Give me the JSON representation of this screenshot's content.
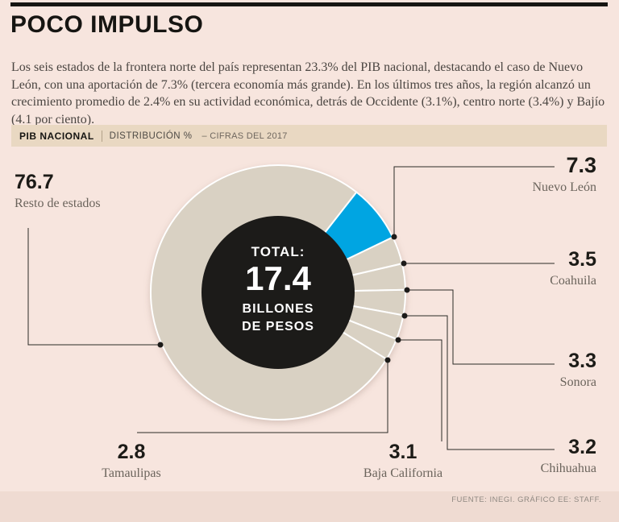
{
  "header": {
    "title": "POCO IMPULSO",
    "intro": "Los seis estados de la frontera norte del país representan 23.3% del PIB nacional, destacando el caso de Nuevo León, con una aportación de 7.3% (tercera economía más grande). En los últimos tres años, la región alcanzó un crecimiento promedio de 2.4% en su actividad económica, detrás de Occidente (3.1%), centro norte (3.4%) y Bajío (4.1 por ciento)."
  },
  "strip": {
    "label": "PIB NACIONAL",
    "sub": "DISTRIBUCIÓN %",
    "note": "– CIFRAS DEL 2017"
  },
  "donut_center": {
    "line1": "TOTAL:",
    "value": "17.4",
    "line2": "BILLONES",
    "line3": "DE PESOS"
  },
  "footer": {
    "source": "FUENTE: INEGI. GRÁFICO EE: STAFF."
  },
  "chart_data": {
    "type": "pie",
    "donut": true,
    "title": "PIB NACIONAL – DISTRIBUCIÓN % – CIFRAS DEL 2017",
    "center_label": "TOTAL: 17.4 BILLONES DE PESOS",
    "units": "% del PIB nacional",
    "start_angle_deg": 38,
    "legend_position": "callout-labels",
    "colors": {
      "highlight": "#00a5e2",
      "base": "#d9d1c3",
      "hole": "#1c1b19",
      "background": "#f7e5de"
    },
    "slices": [
      {
        "label": "Nuevo León",
        "value": 7.3,
        "color": "#00a5e2"
      },
      {
        "label": "Coahuila",
        "value": 3.5,
        "color": "#d9d1c3"
      },
      {
        "label": "Sonora",
        "value": 3.3,
        "color": "#d9d1c3"
      },
      {
        "label": "Chihuahua",
        "value": 3.2,
        "color": "#d9d1c3"
      },
      {
        "label": "Baja California",
        "value": 3.1,
        "color": "#d9d1c3"
      },
      {
        "label": "Tamaulipas",
        "value": 2.8,
        "color": "#d9d1c3"
      },
      {
        "label": "Resto de estados",
        "value": 76.7,
        "color": "#d9d1c3"
      }
    ]
  }
}
